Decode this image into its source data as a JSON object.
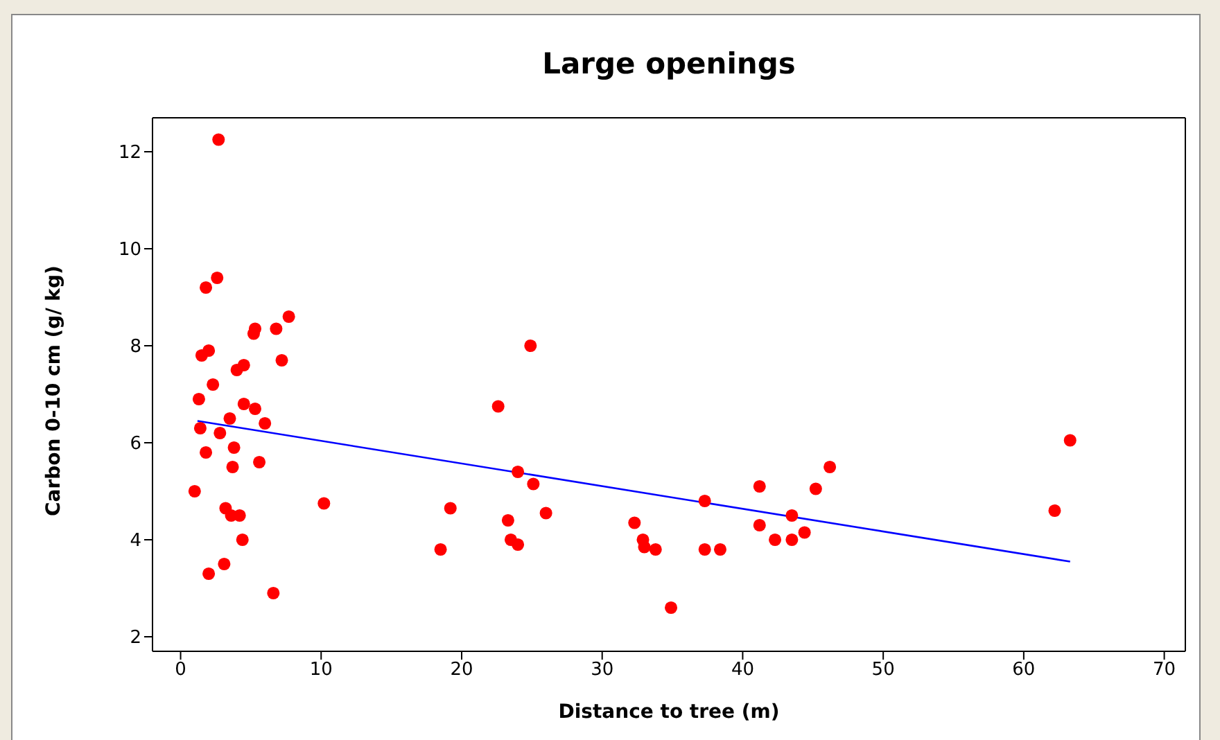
{
  "chart_data": {
    "type": "scatter",
    "title": "Large openings",
    "xlabel": "Distance to tree (m)",
    "ylabel": "Carbon 0-10 cm (g/ kg)",
    "xlim": [
      -2,
      71.5
    ],
    "ylim": [
      1.7,
      12.7
    ],
    "xticks": [
      0,
      10,
      20,
      30,
      40,
      50,
      60,
      70
    ],
    "yticks": [
      2,
      4,
      6,
      8,
      10,
      12
    ],
    "series": [
      {
        "marker": "circle",
        "color": "#ff0000",
        "x": [
          1.0,
          1.3,
          1.4,
          1.5,
          1.8,
          1.8,
          2.0,
          2.0,
          2.3,
          2.6,
          2.7,
          2.8,
          3.1,
          3.2,
          3.5,
          3.6,
          3.7,
          3.8,
          4.0,
          4.2,
          4.4,
          4.5,
          4.5,
          5.2,
          5.3,
          5.3,
          5.6,
          6.0,
          6.6,
          6.8,
          7.2,
          7.7,
          10.2,
          18.5,
          19.2,
          22.6,
          23.3,
          23.5,
          24.0,
          24.0,
          24.9,
          25.1,
          26.0,
          32.3,
          32.9,
          33.0,
          33.8,
          34.9,
          37.3,
          37.3,
          38.4,
          41.2,
          41.2,
          42.3,
          43.5,
          43.5,
          44.4,
          45.2,
          46.2,
          62.2,
          63.3
        ],
        "values": [
          5.0,
          6.9,
          6.3,
          7.8,
          9.2,
          5.8,
          7.9,
          3.3,
          7.2,
          9.4,
          12.25,
          6.2,
          3.5,
          4.65,
          6.5,
          4.5,
          5.5,
          5.9,
          7.5,
          4.5,
          4.0,
          7.6,
          6.8,
          8.25,
          8.35,
          6.7,
          5.6,
          6.4,
          2.9,
          8.35,
          7.7,
          8.6,
          4.75,
          3.8,
          4.65,
          6.75,
          4.4,
          4.0,
          5.4,
          3.9,
          8.0,
          5.15,
          4.55,
          4.35,
          4.0,
          3.85,
          3.8,
          2.6,
          4.8,
          3.8,
          3.8,
          5.1,
          4.3,
          4.0,
          4.5,
          4.0,
          4.15,
          5.05,
          5.5,
          4.6,
          6.05
        ]
      },
      {
        "type": "line",
        "color": "#0000ff",
        "x": [
          1.2,
          63.3
        ],
        "values": [
          6.45,
          3.55
        ]
      }
    ]
  }
}
